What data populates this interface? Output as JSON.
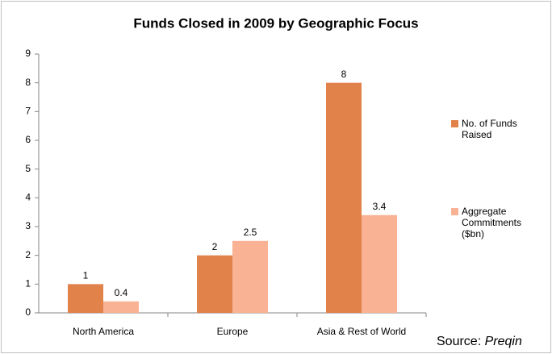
{
  "chart_data": {
    "type": "bar",
    "title": "Funds Closed in 2009 by Geographic Focus",
    "categories": [
      "North America",
      "Europe",
      "Asia & Rest of World"
    ],
    "series": [
      {
        "name": "No. of Funds Raised",
        "color": "#e0824a",
        "values": [
          1,
          2,
          8
        ]
      },
      {
        "name": "Aggregate Commitments ($bn)",
        "color": "#f9b293",
        "values": [
          0.4,
          2.5,
          3.4
        ]
      }
    ],
    "ylim": [
      0,
      9
    ],
    "yticks": [
      0,
      1,
      2,
      3,
      4,
      5,
      6,
      7,
      8,
      9
    ],
    "grid": false,
    "legend": "right",
    "source": {
      "label": "Source:",
      "name": "Preqin"
    }
  }
}
